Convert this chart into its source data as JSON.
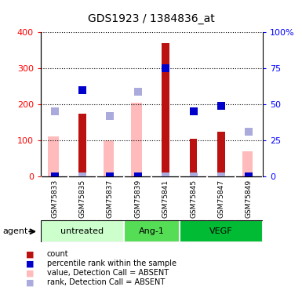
{
  "title": "GDS1923 / 1384836_at",
  "samples": [
    "GSM75833",
    "GSM75835",
    "GSM75837",
    "GSM75839",
    "GSM75841",
    "GSM75845",
    "GSM75847",
    "GSM75849"
  ],
  "groups": [
    {
      "label": "untreated",
      "indices": [
        0,
        1,
        2
      ],
      "color": "#ccffcc"
    },
    {
      "label": "Ang-1",
      "indices": [
        3,
        4
      ],
      "color": "#66ee66"
    },
    {
      "label": "VEGF",
      "indices": [
        5,
        6,
        7
      ],
      "color": "#00cc44"
    }
  ],
  "red_bars": [
    0,
    175,
    0,
    0,
    370,
    105,
    125,
    0
  ],
  "pink_bars": [
    110,
    0,
    100,
    205,
    0,
    0,
    0,
    70
  ],
  "blue_squares_pct": [
    0,
    60,
    0,
    0,
    75,
    45,
    49,
    0
  ],
  "lightblue_squares_pct": [
    45,
    0,
    42,
    59,
    0,
    0,
    0,
    31
  ],
  "ylim_left": [
    0,
    400
  ],
  "ylim_right": [
    0,
    100
  ],
  "yticks_left": [
    0,
    100,
    200,
    300,
    400
  ],
  "yticks_right": [
    0,
    25,
    50,
    75,
    100
  ],
  "yticklabels_right": [
    "0",
    "25",
    "50",
    "75",
    "100%"
  ],
  "red_color": "#bb1111",
  "pink_color": "#ffbbbb",
  "blue_color": "#0000cc",
  "lightblue_color": "#aaaadd",
  "background_color": "#ffffff",
  "legend_items": [
    {
      "label": "count",
      "color": "#bb1111"
    },
    {
      "label": "percentile rank within the sample",
      "color": "#0000cc"
    },
    {
      "label": "value, Detection Call = ABSENT",
      "color": "#ffbbbb"
    },
    {
      "label": "rank, Detection Call = ABSENT",
      "color": "#aaaadd"
    }
  ],
  "agent_label": "agent"
}
